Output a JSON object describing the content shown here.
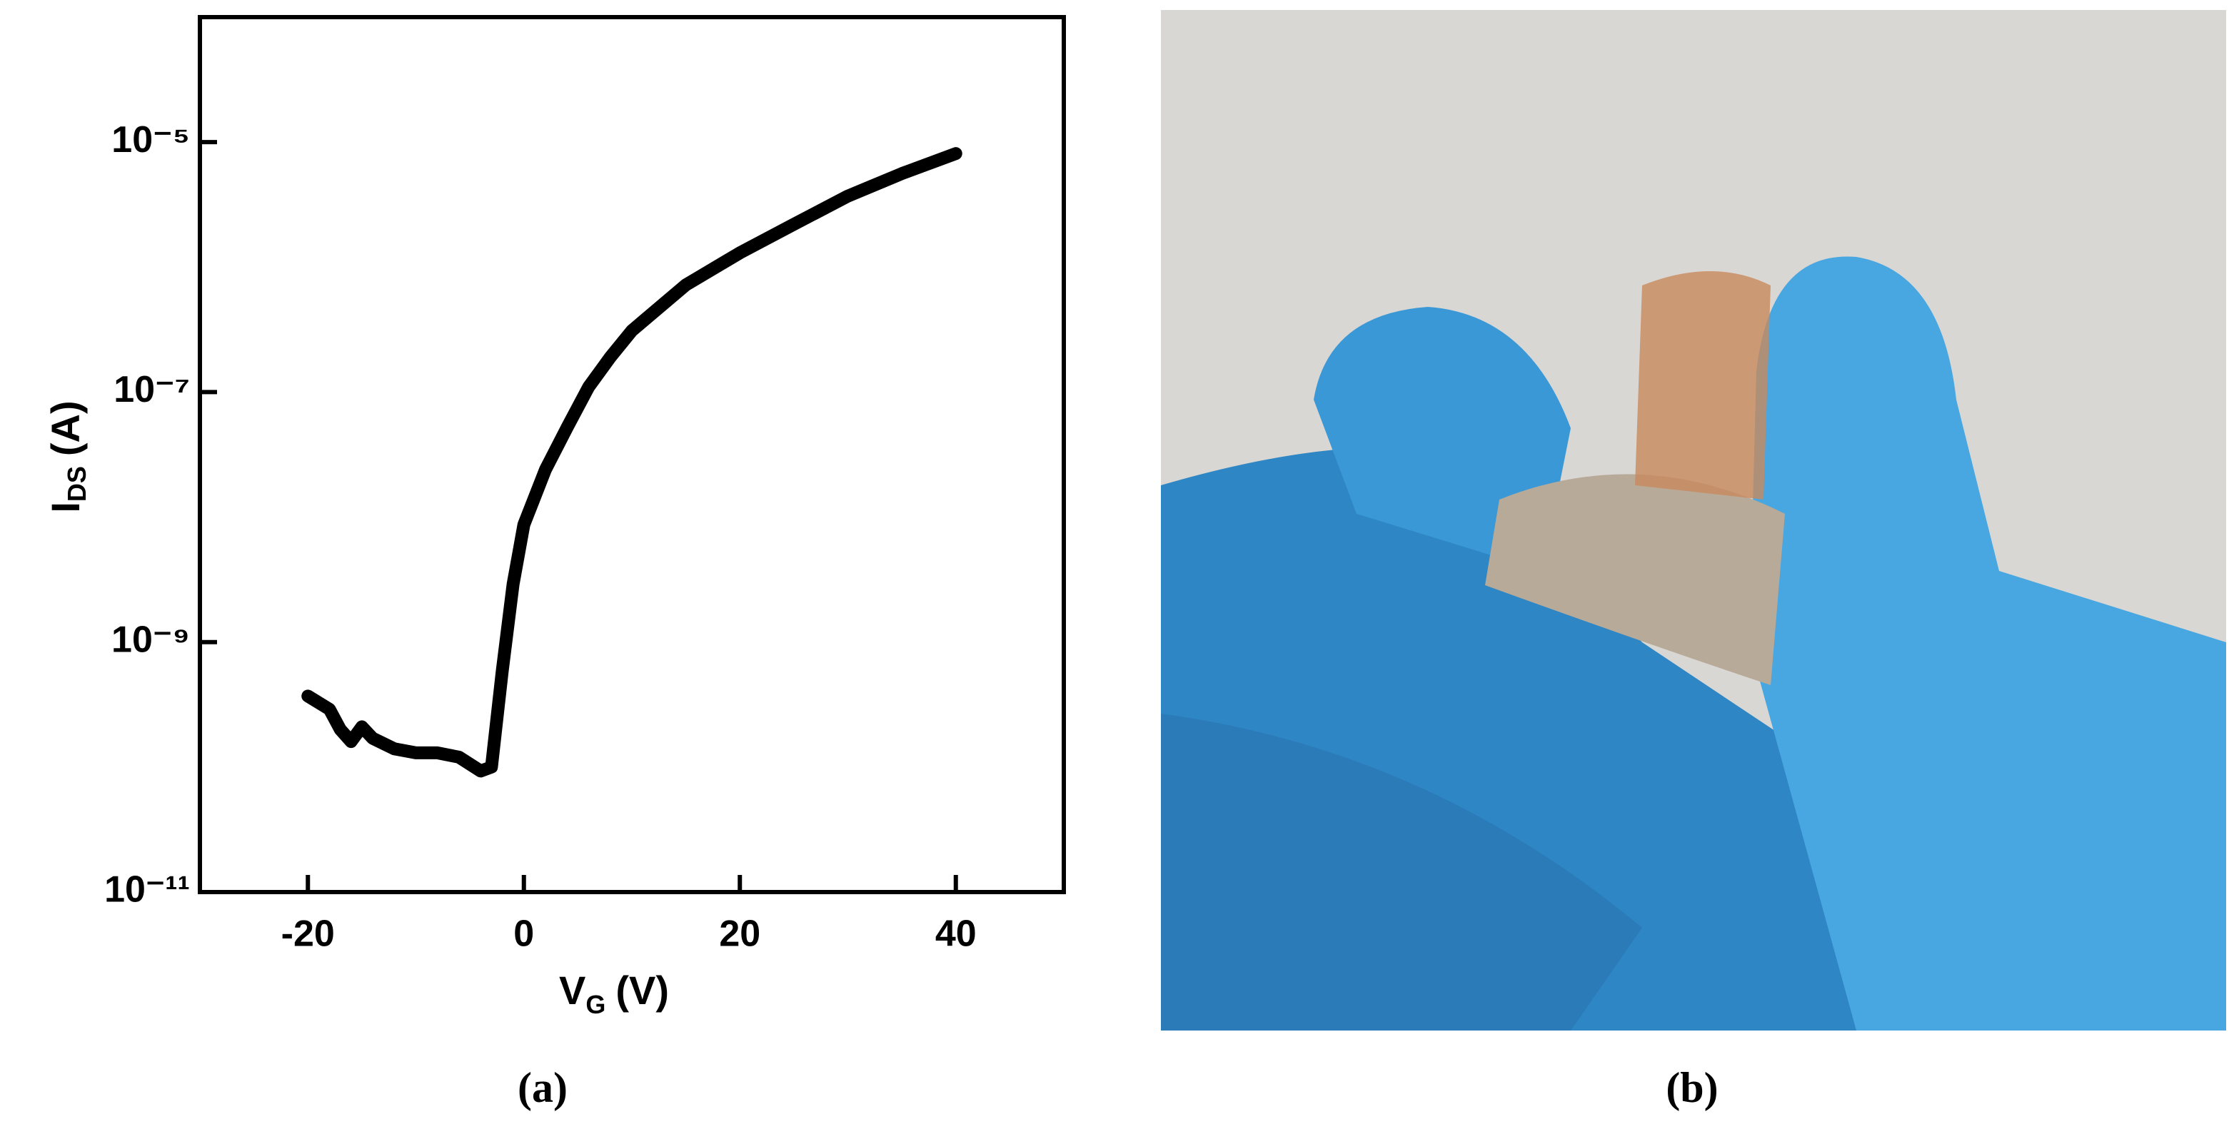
{
  "chart_data": {
    "type": "line",
    "log_y": true,
    "xlabel": "V",
    "xlabel_sub": "G",
    "xlabel_unit": "(V)",
    "ylabel": "I",
    "ylabel_sub": "DS",
    "ylabel_unit": "(A)",
    "xlim": [
      -30,
      50
    ],
    "xticks": [
      -20,
      0,
      20,
      40
    ],
    "ylim": [
      1e-11,
      0.0001
    ],
    "yticks": [
      {
        "value": 1e-11,
        "label": "10⁻¹¹"
      },
      {
        "value": 1e-09,
        "label": "10⁻⁹"
      },
      {
        "value": 1e-07,
        "label": "10⁻⁷"
      },
      {
        "value": 1e-05,
        "label": "10⁻⁵"
      }
    ],
    "x": [
      -20,
      -18,
      -17,
      -16,
      -15,
      -14,
      -12,
      -10,
      -8,
      -6,
      -4,
      -3,
      -2,
      -1,
      0,
      2,
      4,
      6,
      8,
      10,
      15,
      20,
      25,
      30,
      35,
      40
    ],
    "values": [
      3.7e-10,
      2.9e-10,
      2e-10,
      1.6e-10,
      2.1e-10,
      1.7e-10,
      1.4e-10,
      1.3e-10,
      1.3e-10,
      1.2e-10,
      9.3e-11,
      1e-10,
      5.9e-10,
      2.9e-09,
      8.7e-09,
      2.4e-08,
      5.2e-08,
      1.1e-07,
      1.9e-07,
      3.1e-07,
      7.2e-07,
      1.3e-06,
      2.2e-06,
      3.7e-06,
      5.6e-06,
      8.1e-06
    ],
    "color": "#000000"
  },
  "captions": [
    "(a)",
    "(b)"
  ]
}
